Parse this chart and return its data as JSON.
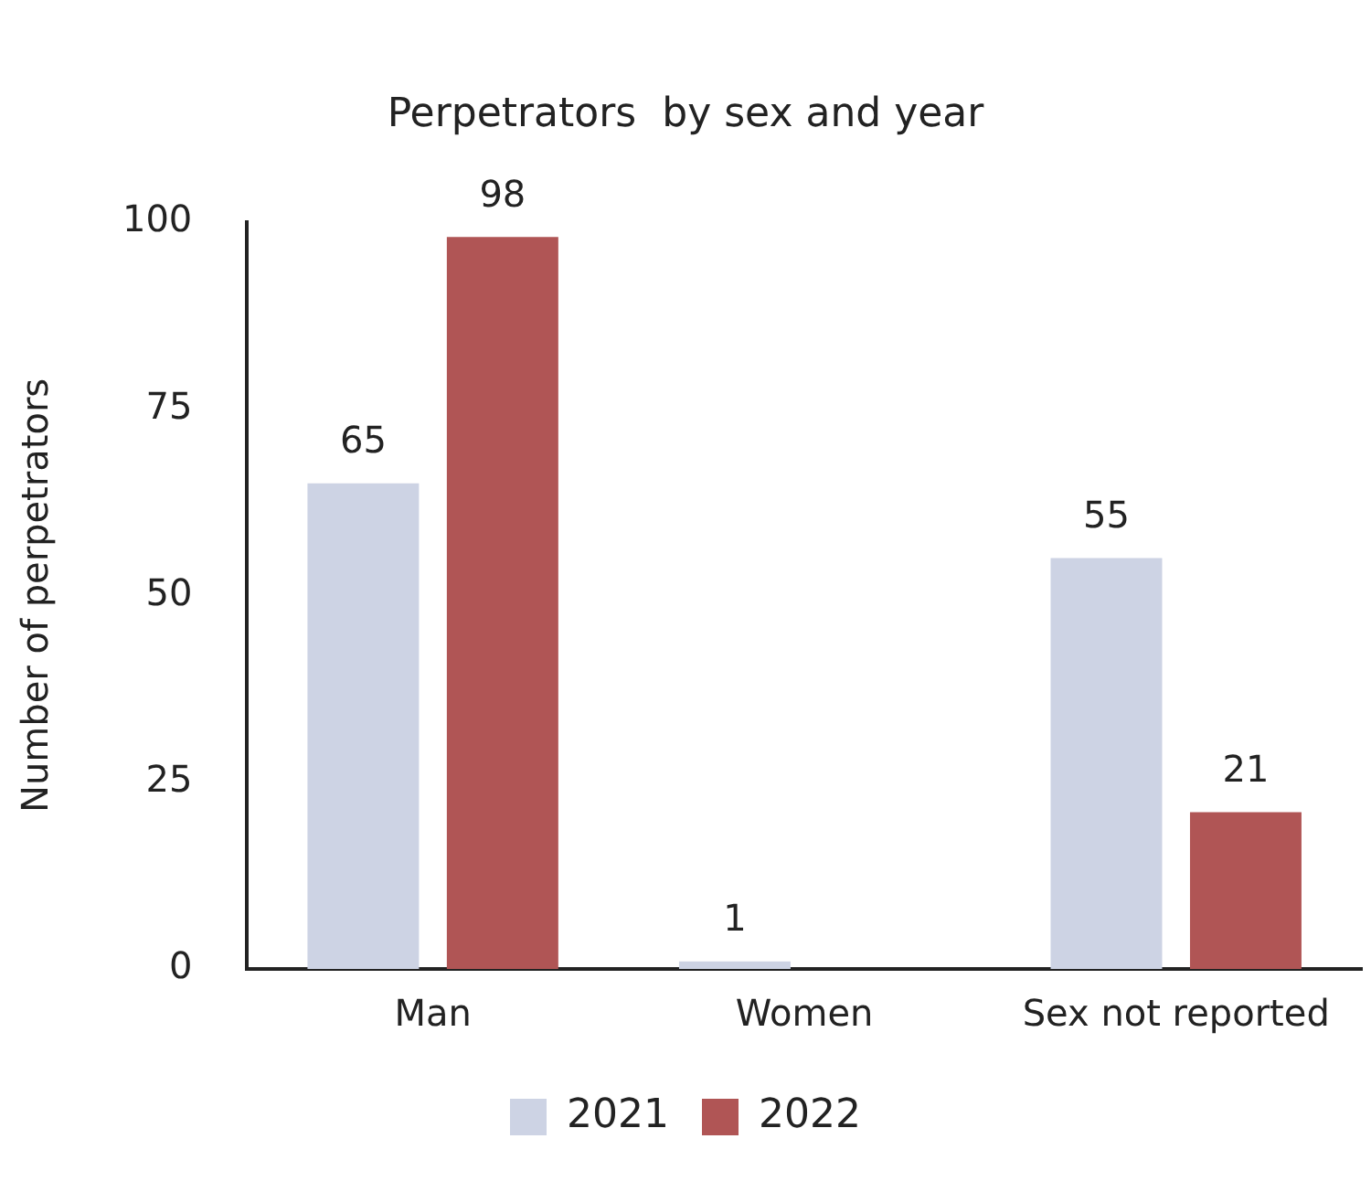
{
  "chart_data": {
    "type": "bar",
    "title": "Perpetrators  by sex and year",
    "ylabel": "Number of perpetrators",
    "categories": [
      "Man",
      "Women",
      "Sex not reported"
    ],
    "series": [
      {
        "name": "2021",
        "color": "#cdd3e4",
        "values": [
          65,
          1,
          55
        ]
      },
      {
        "name": "2022",
        "color": "#b05555",
        "values": [
          98,
          null,
          21
        ]
      }
    ],
    "ylim": [
      0,
      100
    ],
    "yticks": [
      0,
      25,
      50,
      75,
      100
    ],
    "grid": false,
    "legend": "bottom",
    "data_labels": true
  }
}
